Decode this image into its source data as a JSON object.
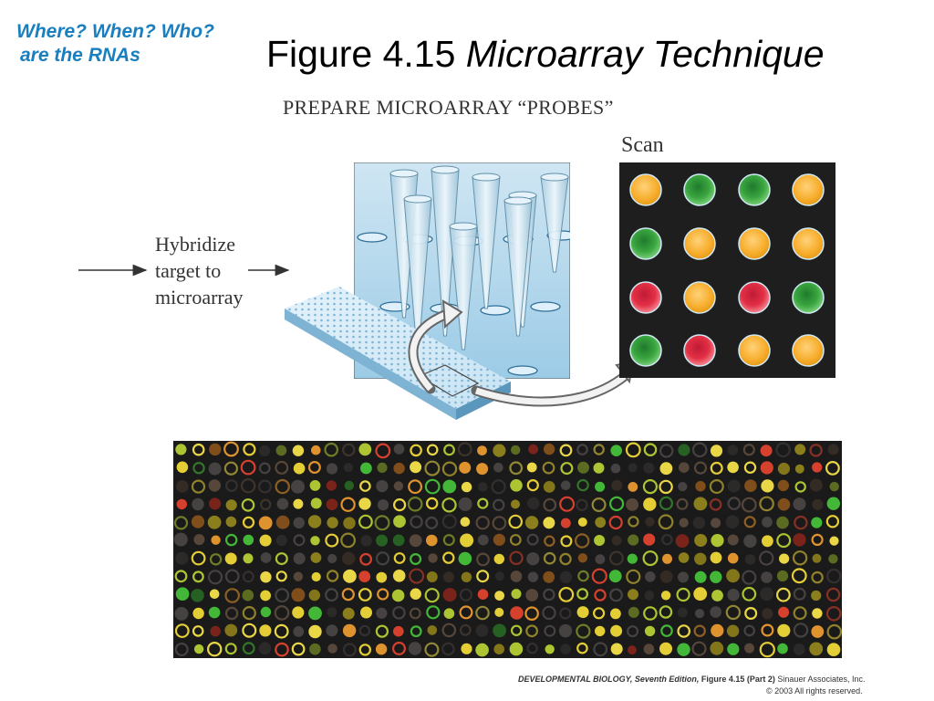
{
  "corner_note": {
    "line1": "Where? When? Who?",
    "line2": "are the RNAs",
    "color": "#1a7fbf"
  },
  "title": {
    "prefix": "Figure 4.15 ",
    "italic": "Microarray Technique"
  },
  "diagram": {
    "probes_heading": "PREPARE MICROARRAY “PROBES”",
    "scan_label": "Scan",
    "hybridize_lines": [
      "Hybridize",
      "target to",
      "microarray"
    ],
    "scan_grid": [
      [
        "orange",
        "green",
        "green",
        "orange"
      ],
      [
        "green",
        "orange",
        "orange",
        "orange"
      ],
      [
        "red",
        "orange",
        "red",
        "green"
      ],
      [
        "green",
        "red",
        "orange",
        "orange"
      ]
    ],
    "spot_colors": {
      "orange": "#f7ad2b",
      "green": "#3aa53f",
      "red": "#e23045",
      "yellow": "#f2d41c"
    }
  },
  "footer": {
    "book": "DEVELOPMENTAL BIOLOGY, Seventh Edition,",
    "figure": "Figure 4.15 (Part 2)",
    "publisher": "Sinauer Associates, Inc.",
    "copyright": "© 2003 All rights reserved."
  }
}
